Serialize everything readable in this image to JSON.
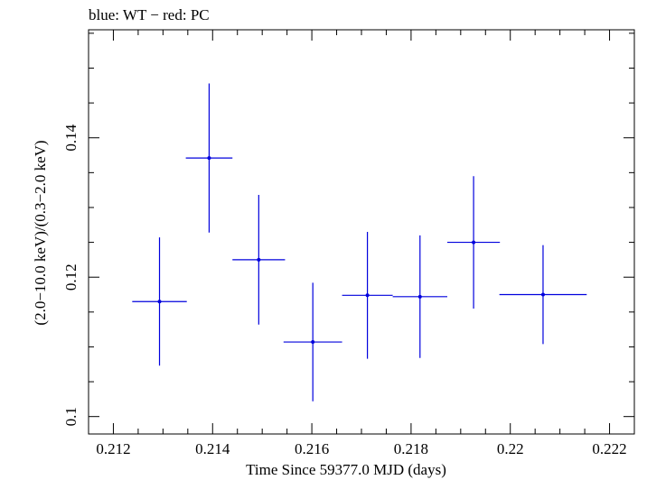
{
  "chart_data": {
    "type": "scatter",
    "title": "blue: WT − red: PC",
    "xlabel": "Time Since 59377.0 MJD (days)",
    "ylabel": "(2.0−10.0 keV)/(0.3−2.0 keV)",
    "xlim": [
      0.2115,
      0.2225
    ],
    "ylim": [
      0.0975,
      0.1555
    ],
    "x_ticks": [
      {
        "value": 0.212,
        "label": "0.212"
      },
      {
        "value": 0.214,
        "label": "0.214"
      },
      {
        "value": 0.216,
        "label": "0.216"
      },
      {
        "value": 0.218,
        "label": "0.218"
      },
      {
        "value": 0.22,
        "label": "0.22"
      },
      {
        "value": 0.222,
        "label": "0.222"
      }
    ],
    "y_ticks": [
      {
        "value": 0.1,
        "label": "0.1"
      },
      {
        "value": 0.12,
        "label": "0.12"
      },
      {
        "value": 0.14,
        "label": "0.14"
      }
    ],
    "series": [
      {
        "name": "WT",
        "color": "#0000dd",
        "points": [
          {
            "x": 0.21293,
            "y": 0.1165,
            "xerr": 0.00055,
            "yerr": 0.0092
          },
          {
            "x": 0.21393,
            "y": 0.1371,
            "xerr": 0.00047,
            "yerr": 0.0107
          },
          {
            "x": 0.21493,
            "y": 0.1225,
            "xerr": 0.00053,
            "yerr": 0.0093
          },
          {
            "x": 0.21602,
            "y": 0.1107,
            "xerr": 0.00059,
            "yerr": 0.0085
          },
          {
            "x": 0.21712,
            "y": 0.1174,
            "xerr": 0.00051,
            "yerr": 0.0091
          },
          {
            "x": 0.21818,
            "y": 0.1172,
            "xerr": 0.00055,
            "yerr": 0.0088
          },
          {
            "x": 0.21926,
            "y": 0.125,
            "xerr": 0.00053,
            "yerr": 0.0095
          },
          {
            "x": 0.22066,
            "y": 0.1175,
            "xerr": 0.00088,
            "yerr": 0.0071
          }
        ]
      }
    ]
  }
}
